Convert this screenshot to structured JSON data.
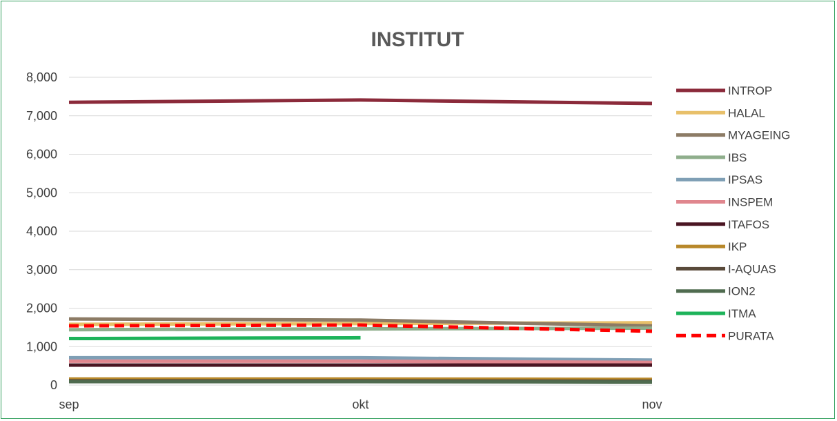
{
  "chart_data": {
    "type": "line",
    "title": "INSTITUT",
    "xlabel": "",
    "ylabel": "",
    "categories": [
      "sep",
      "okt",
      "nov"
    ],
    "ylim": [
      0,
      8000
    ],
    "yticks": [
      0,
      1000,
      2000,
      3000,
      4000,
      5000,
      6000,
      7000,
      8000
    ],
    "ytick_labels": [
      "0",
      "1,000",
      "2,000",
      "3,000",
      "4,000",
      "5,000",
      "6,000",
      "7,000",
      "8,000"
    ],
    "grid": true,
    "legend_position": "right",
    "series": [
      {
        "name": "INTROP",
        "color": "#8b2a3a",
        "values": [
          7350,
          7410,
          7320
        ]
      },
      {
        "name": "HALAL",
        "color": "#e8c06a",
        "values": [
          1580,
          1600,
          1620
        ]
      },
      {
        "name": "MYAGEING",
        "color": "#8c7b65",
        "values": [
          1720,
          1690,
          1540
        ]
      },
      {
        "name": "IBS",
        "color": "#8fae8c",
        "values": [
          1440,
          1460,
          1480
        ]
      },
      {
        "name": "IPSAS",
        "color": "#7f9fb5",
        "values": [
          710,
          710,
          650
        ]
      },
      {
        "name": "INSPEM",
        "color": "#e0868e",
        "values": [
          620,
          620,
          590
        ]
      },
      {
        "name": "ITAFOS",
        "color": "#4a1522",
        "values": [
          520,
          520,
          520
        ]
      },
      {
        "name": "IKP",
        "color": "#b8882a",
        "values": [
          160,
          160,
          150
        ]
      },
      {
        "name": "I-AQUAS",
        "color": "#594a3a",
        "values": [
          110,
          110,
          100
        ]
      },
      {
        "name": "ION2",
        "color": "#4f6b4f",
        "values": [
          90,
          90,
          80
        ]
      },
      {
        "name": "ITMA",
        "color": "#1db35a",
        "values": [
          1210,
          1230,
          null
        ]
      },
      {
        "name": "PURATA",
        "color": "#ff0000",
        "dashed": true,
        "values": [
          1540,
          1560,
          1400
        ]
      }
    ]
  }
}
